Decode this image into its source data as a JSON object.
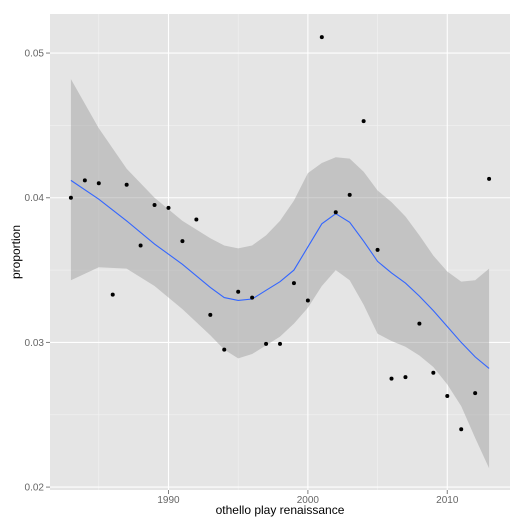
{
  "chart_data": {
    "type": "scatter",
    "title": "",
    "xlabel": "othello play renaissance",
    "ylabel": "proportion",
    "xlim": [
      1981.5,
      2014.5
    ],
    "ylim": [
      0.0198,
      0.0527
    ],
    "xticks": [
      1990,
      2000,
      2010
    ],
    "yticks": [
      0.02,
      0.03,
      0.04,
      0.05
    ],
    "xtick_labels": [
      "1990",
      "2000",
      "2010"
    ],
    "ytick_labels": [
      "0.02",
      "0.03",
      "0.04",
      "0.05"
    ],
    "grid": true,
    "legend": "none",
    "background_color": "#E5E5E5",
    "grid_color": "#FFFFFF",
    "point_color": "#000000",
    "smooth_color": "#3366FF",
    "ribbon_color": "#999999",
    "points": [
      {
        "x": 1983,
        "y": 0.04
      },
      {
        "x": 1984,
        "y": 0.0412
      },
      {
        "x": 1985,
        "y": 0.041
      },
      {
        "x": 1986,
        "y": 0.0333
      },
      {
        "x": 1987,
        "y": 0.0409
      },
      {
        "x": 1988,
        "y": 0.0367
      },
      {
        "x": 1989,
        "y": 0.0395
      },
      {
        "x": 1990,
        "y": 0.0393
      },
      {
        "x": 1991,
        "y": 0.037
      },
      {
        "x": 1992,
        "y": 0.0385
      },
      {
        "x": 1993,
        "y": 0.0319
      },
      {
        "x": 1994,
        "y": 0.0295
      },
      {
        "x": 1995,
        "y": 0.0335
      },
      {
        "x": 1996,
        "y": 0.0331
      },
      {
        "x": 1997,
        "y": 0.0299
      },
      {
        "x": 1998,
        "y": 0.0299
      },
      {
        "x": 1999,
        "y": 0.0341
      },
      {
        "x": 2000,
        "y": 0.0329
      },
      {
        "x": 2001,
        "y": 0.0511
      },
      {
        "x": 2002,
        "y": 0.039
      },
      {
        "x": 2003,
        "y": 0.0402
      },
      {
        "x": 2004,
        "y": 0.0453
      },
      {
        "x": 2005,
        "y": 0.0364
      },
      {
        "x": 2006,
        "y": 0.0275
      },
      {
        "x": 2007,
        "y": 0.0276
      },
      {
        "x": 2008,
        "y": 0.0313
      },
      {
        "x": 2009,
        "y": 0.0279
      },
      {
        "x": 2010,
        "y": 0.0263
      },
      {
        "x": 2011,
        "y": 0.024
      },
      {
        "x": 2012,
        "y": 0.0265
      },
      {
        "x": 2013,
        "y": 0.0413
      }
    ],
    "smooth_line": {
      "x": [
        1983,
        1985,
        1987,
        1989,
        1991,
        1993,
        1994,
        1995,
        1996,
        1997,
        1998,
        1999,
        2000,
        2001,
        2002,
        2003,
        2004,
        2005,
        2006,
        2007,
        2008,
        2009,
        2010,
        2011,
        2012,
        2013
      ],
      "y": [
        0.0412,
        0.0399,
        0.0384,
        0.0368,
        0.0354,
        0.0338,
        0.0331,
        0.0329,
        0.033,
        0.0336,
        0.0342,
        0.035,
        0.0366,
        0.0382,
        0.0389,
        0.0383,
        0.037,
        0.0356,
        0.0348,
        0.0341,
        0.0332,
        0.0322,
        0.0311,
        0.03,
        0.029,
        0.0282
      ]
    },
    "confidence_band": {
      "x": [
        1983,
        1985,
        1987,
        1989,
        1991,
        1993,
        1994,
        1995,
        1996,
        1997,
        1998,
        1999,
        2000,
        2001,
        2002,
        2003,
        2004,
        2005,
        2006,
        2007,
        2008,
        2009,
        2010,
        2011,
        2012,
        2013
      ],
      "upper": [
        0.0482,
        0.0448,
        0.042,
        0.04,
        0.0384,
        0.0372,
        0.0367,
        0.0365,
        0.0367,
        0.0374,
        0.0384,
        0.0398,
        0.0417,
        0.0424,
        0.0428,
        0.0427,
        0.0418,
        0.0405,
        0.0397,
        0.0387,
        0.0374,
        0.036,
        0.0349,
        0.0342,
        0.0343,
        0.0351
      ],
      "lower": [
        0.0343,
        0.0352,
        0.0351,
        0.0339,
        0.0323,
        0.0305,
        0.0295,
        0.0289,
        0.0292,
        0.0298,
        0.0304,
        0.0313,
        0.0324,
        0.0339,
        0.035,
        0.0343,
        0.0326,
        0.0306,
        0.0301,
        0.0297,
        0.0291,
        0.0283,
        0.0271,
        0.0256,
        0.0234,
        0.0213
      ]
    }
  }
}
